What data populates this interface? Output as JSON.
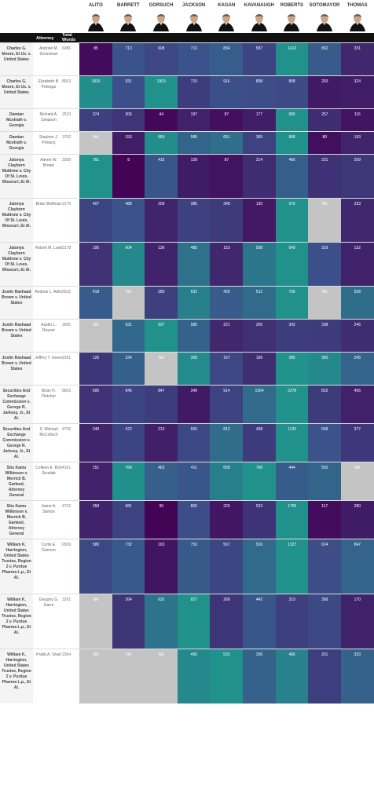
{
  "header": {
    "attorney_label": "Attorney",
    "total_words_label": "Total Words",
    "justices": [
      "ALITO",
      "BARRETT",
      "GORSUCH",
      "JACKSON",
      "KAGAN",
      "KAVANAUGH",
      "ROBERTS",
      "SOTOMAYOR",
      "THOMAS"
    ]
  },
  "chart_data": {
    "type": "heatmap",
    "columns": [
      "ALITO",
      "BARRETT",
      "GORSUCH",
      "JACKSON",
      "KAGAN",
      "KAVANAUGH",
      "ROBERTS",
      "SOTOMAYOR",
      "THOMAS"
    ],
    "rows": [
      {
        "case": "Charles G. Moore, Et Ux. v. United States",
        "attorney": "Andrew M. Grossman",
        "total": 6086,
        "values": [
          85,
          713,
          608,
          713,
          834,
          587,
          1413,
          802,
          331
        ]
      },
      {
        "case": "Charles G. Moore, Et Ux. v. United States",
        "attorney": "Elizabeth B. Prelogar",
        "total": 8663,
        "values": [
          1830,
          931,
          1903,
          710,
          916,
          898,
          858,
          293,
          324
        ]
      },
      {
        "case": "Damian Mcelrath v. Georgia",
        "attorney": "Richard A. Simpson",
        "total": 2523,
        "values": [
          374,
          306,
          44,
          197,
          87,
          177,
          965,
          257,
          116
        ]
      },
      {
        "case": "Damian Mcelrath v. Georgia",
        "attorney": "Stephen J. Petrany",
        "total": 3792,
        "values": [
          "NA",
          153,
          869,
          585,
          651,
          365,
          896,
          80,
          193
        ]
      },
      {
        "case": "Jatonya Clayborn Muldrow v. City Of St. Louis, Missouri, Et Al.",
        "attorney": "Aimee W. Brown",
        "total": 2589,
        "values": [
          781,
          8,
          415,
          128,
          87,
          214,
          466,
          231,
          259
        ]
      },
      {
        "case": "Jatonya Clayborn Muldrow v. City Of St. Louis, Missouri, Et Al.",
        "attorney": "Brian Wolfman",
        "total": 3176,
        "values": [
          407,
          488,
          209,
          385,
          348,
          130,
          976,
          "NA",
          233
        ]
      },
      {
        "case": "Jatonya Clayborn Muldrow v. City Of St. Louis, Missouri, Et Al.",
        "attorney": "Robert M. Loeb",
        "total": 3178,
        "values": [
          195,
          604,
          136,
          485,
          153,
          508,
          649,
          316,
          132
        ]
      },
      {
        "case": "Justin Rashaad Brown v. United States",
        "attorney": "Andrew L. Adler",
        "total": 3532,
        "values": [
          418,
          "NA",
          280,
          632,
          426,
          512,
          736,
          "NA",
          528
        ]
      },
      {
        "case": "Justin Rashaad Brown v. United States",
        "attorney": "Austin L. Raynor",
        "total": 3565,
        "values": [
          "NA",
          631,
          937,
          585,
          221,
          265,
          342,
          338,
          246
        ]
      },
      {
        "case": "Justin Rashaad Brown v. United States",
        "attorney": "Jeffrey T. Green",
        "total": 1991,
        "values": [
          126,
          234,
          "NA",
          368,
          167,
          106,
          385,
          360,
          245
        ]
      },
      {
        "case": "Securities And Exchange Commission v. George R. Jarkesy, Jr., Et Al.",
        "attorney": "Brian H. Fletcher",
        "total": 8863,
        "values": [
          695,
          945,
          847,
          349,
          914,
          1564,
          2278,
          815,
          456
        ]
      },
      {
        "case": "Securities And Exchange Commission v. George R. Jarkesy, Jr., Et Al.",
        "attorney": "S. Michael McColloch",
        "total": 4735,
        "values": [
          249,
          472,
          213,
          500,
          813,
          408,
          1135,
          568,
          377
        ]
      },
      {
        "case": "Situ Kamu Wilkinson v. Merrick B. Garland, Attorney General",
        "attorney": "Colleen E. Roh Sinzdak",
        "total": 4161,
        "values": [
          151,
          764,
          463,
          411,
          658,
          768,
          444,
          502,
          "NA"
        ]
      },
      {
        "case": "Situ Kamu Wilkinson v. Merrick B. Garland, Attorney General",
        "attorney": "Jaime A. Santos",
        "total": 4732,
        "values": [
          358,
          681,
          36,
          805,
          226,
          523,
          1706,
          117,
          280
        ]
      },
      {
        "case": "William K. Harrington, United States Trustee, Region 2 v. Purdue Pharma L.p., Et Al.",
        "attorney": "Curtis E. Gannon",
        "total": 6509,
        "values": [
          580,
          732,
          163,
          753,
          567,
          916,
          1327,
          624,
          847
        ]
      },
      {
        "case": "William K. Harrington, United States Trustee, Region 2 v. Purdue Pharma L.p., Et Al.",
        "attorney": "Gregory G. Garre",
        "total": 3291,
        "values": [
          "NA",
          264,
          632,
          827,
          268,
          443,
          319,
          368,
          170
        ]
      },
      {
        "case": "William K. Harrington, United States Trustee, Region 2 v. Purdue Pharma L.p., Et Al.",
        "attorney": "Pratik A. Shah",
        "total": 2364,
        "values": [
          "NA",
          "NA",
          "NA",
          495,
          533,
          336,
          466,
          201,
          333
        ]
      }
    ],
    "na_color": "#c4c4c4",
    "color_scale": [
      "#440154",
      "#3b528b",
      "#21918c"
    ]
  }
}
